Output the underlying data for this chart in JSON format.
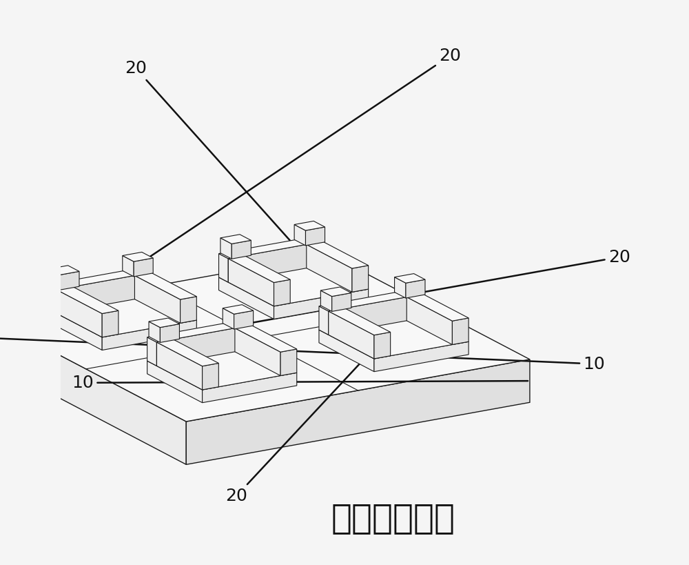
{
  "title": "",
  "chinese_text": "正方周期阵列",
  "label_10": "10",
  "label_20": "20",
  "bg_color": "#f5f5f5",
  "line_color": "#1a1a1a",
  "face_color": "#ffffff",
  "annotation_color": "#111111",
  "font_size_label": 18,
  "font_size_chinese": 36,
  "figsize": [
    10.0,
    8.19
  ],
  "dpi": 100
}
